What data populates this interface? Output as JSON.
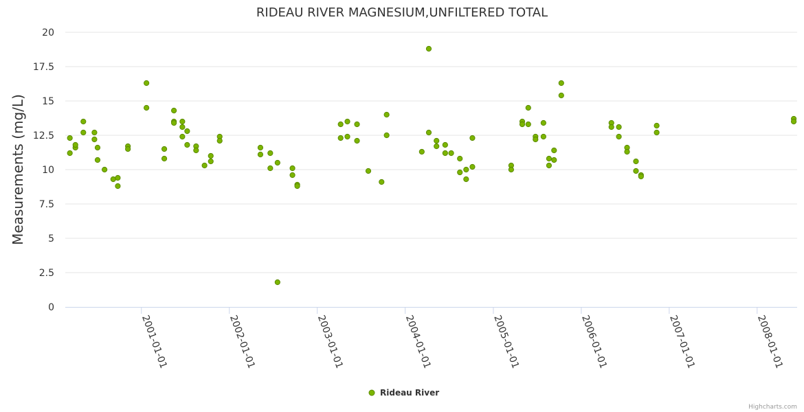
{
  "credit": "Highcharts.com",
  "chart_data": {
    "type": "scatter",
    "title": "RIDEAU RIVER MAGNESIUM,UNFILTERED TOTAL",
    "ylabel": "Measurements (mg/L)",
    "xlabel": "",
    "ylim": [
      0,
      20
    ],
    "yticks": [
      "0",
      "2.5",
      "5",
      "7.5",
      "10",
      "12.5",
      "15",
      "17.5",
      "20"
    ],
    "xlim": [
      "2000-02-20",
      "2008-06-15"
    ],
    "xticks": [
      "2001-01-01",
      "2002-01-01",
      "2003-01-01",
      "2004-01-01",
      "2005-01-01",
      "2006-01-01",
      "2007-01-01",
      "2008-01-01"
    ],
    "grid": true,
    "legend_position": "bottom-center",
    "colors": {
      "marker_fill": "#7cb500",
      "marker_stroke": "#5a8a00",
      "grid": "#e6e6e6",
      "axis": "#ccd6eb"
    },
    "series": [
      {
        "name": "Rideau River",
        "points": [
          [
            "2000-03-10",
            11.2
          ],
          [
            "2000-03-10",
            12.3
          ],
          [
            "2000-04-02",
            11.6
          ],
          [
            "2000-04-02",
            11.8
          ],
          [
            "2000-05-05",
            12.7
          ],
          [
            "2000-05-05",
            13.5
          ],
          [
            "2000-06-20",
            12.7
          ],
          [
            "2000-06-20",
            12.2
          ],
          [
            "2000-07-03",
            11.6
          ],
          [
            "2000-07-03",
            10.7
          ],
          [
            "2000-08-01",
            10.0
          ],
          [
            "2000-09-06",
            9.3
          ],
          [
            "2000-09-25",
            9.4
          ],
          [
            "2000-09-25",
            8.8
          ],
          [
            "2000-11-06",
            11.7
          ],
          [
            "2000-11-06",
            11.5
          ],
          [
            "2001-01-22",
            16.3
          ],
          [
            "2001-01-22",
            14.5
          ],
          [
            "2001-04-06",
            11.5
          ],
          [
            "2001-04-06",
            10.8
          ],
          [
            "2001-05-16",
            14.3
          ],
          [
            "2001-05-16",
            13.5
          ],
          [
            "2001-05-16",
            13.4
          ],
          [
            "2001-06-20",
            13.5
          ],
          [
            "2001-06-20",
            13.1
          ],
          [
            "2001-06-20",
            12.4
          ],
          [
            "2001-07-10",
            12.8
          ],
          [
            "2001-07-10",
            11.8
          ],
          [
            "2001-08-16",
            11.7
          ],
          [
            "2001-08-16",
            11.4
          ],
          [
            "2001-09-20",
            10.3
          ],
          [
            "2001-10-16",
            11.0
          ],
          [
            "2001-10-16",
            10.6
          ],
          [
            "2001-11-22",
            12.4
          ],
          [
            "2001-11-22",
            12.1
          ],
          [
            "2002-05-10",
            11.6
          ],
          [
            "2002-05-10",
            11.1
          ],
          [
            "2002-06-20",
            11.2
          ],
          [
            "2002-06-20",
            10.1
          ],
          [
            "2002-07-20",
            10.5
          ],
          [
            "2002-07-20",
            1.8
          ],
          [
            "2002-09-20",
            10.1
          ],
          [
            "2002-09-20",
            9.6
          ],
          [
            "2002-10-10",
            8.9
          ],
          [
            "2002-10-10",
            8.8
          ],
          [
            "2003-04-08",
            13.3
          ],
          [
            "2003-04-08",
            12.3
          ],
          [
            "2003-05-06",
            13.5
          ],
          [
            "2003-05-06",
            12.4
          ],
          [
            "2003-06-15",
            13.3
          ],
          [
            "2003-06-15",
            12.1
          ],
          [
            "2003-08-01",
            9.9
          ],
          [
            "2003-09-25",
            9.1
          ],
          [
            "2003-10-16",
            14.0
          ],
          [
            "2003-10-16",
            12.5
          ],
          [
            "2004-03-10",
            11.3
          ],
          [
            "2004-04-08",
            18.8
          ],
          [
            "2004-04-08",
            12.7
          ],
          [
            "2004-05-10",
            12.1
          ],
          [
            "2004-05-10",
            11.7
          ],
          [
            "2004-06-15",
            11.8
          ],
          [
            "2004-06-15",
            11.2
          ],
          [
            "2004-07-10",
            11.2
          ],
          [
            "2004-08-15",
            10.8
          ],
          [
            "2004-08-15",
            9.8
          ],
          [
            "2004-09-10",
            10.0
          ],
          [
            "2004-09-10",
            9.3
          ],
          [
            "2004-10-06",
            12.3
          ],
          [
            "2004-10-06",
            10.2
          ],
          [
            "2005-03-16",
            10.3
          ],
          [
            "2005-03-16",
            10.0
          ],
          [
            "2005-05-01",
            13.5
          ],
          [
            "2005-05-01",
            13.3
          ],
          [
            "2005-05-26",
            14.5
          ],
          [
            "2005-05-26",
            13.3
          ],
          [
            "2005-06-25",
            12.4
          ],
          [
            "2005-06-25",
            12.2
          ],
          [
            "2005-07-28",
            13.4
          ],
          [
            "2005-07-28",
            12.4
          ],
          [
            "2005-08-20",
            10.8
          ],
          [
            "2005-08-20",
            10.3
          ],
          [
            "2005-09-10",
            11.4
          ],
          [
            "2005-09-10",
            10.7
          ],
          [
            "2005-10-10",
            16.3
          ],
          [
            "2005-10-10",
            15.4
          ],
          [
            "2006-05-06",
            13.4
          ],
          [
            "2006-05-06",
            13.1
          ],
          [
            "2006-06-06",
            13.1
          ],
          [
            "2006-06-06",
            12.4
          ],
          [
            "2006-07-10",
            11.6
          ],
          [
            "2006-07-10",
            11.3
          ],
          [
            "2006-08-16",
            10.6
          ],
          [
            "2006-08-16",
            9.9
          ],
          [
            "2006-09-06",
            9.6
          ],
          [
            "2006-09-06",
            9.5
          ],
          [
            "2006-11-10",
            13.2
          ],
          [
            "2006-11-10",
            12.7
          ],
          [
            "2008-06-01",
            13.7
          ],
          [
            "2008-06-01",
            13.5
          ]
        ]
      }
    ]
  }
}
